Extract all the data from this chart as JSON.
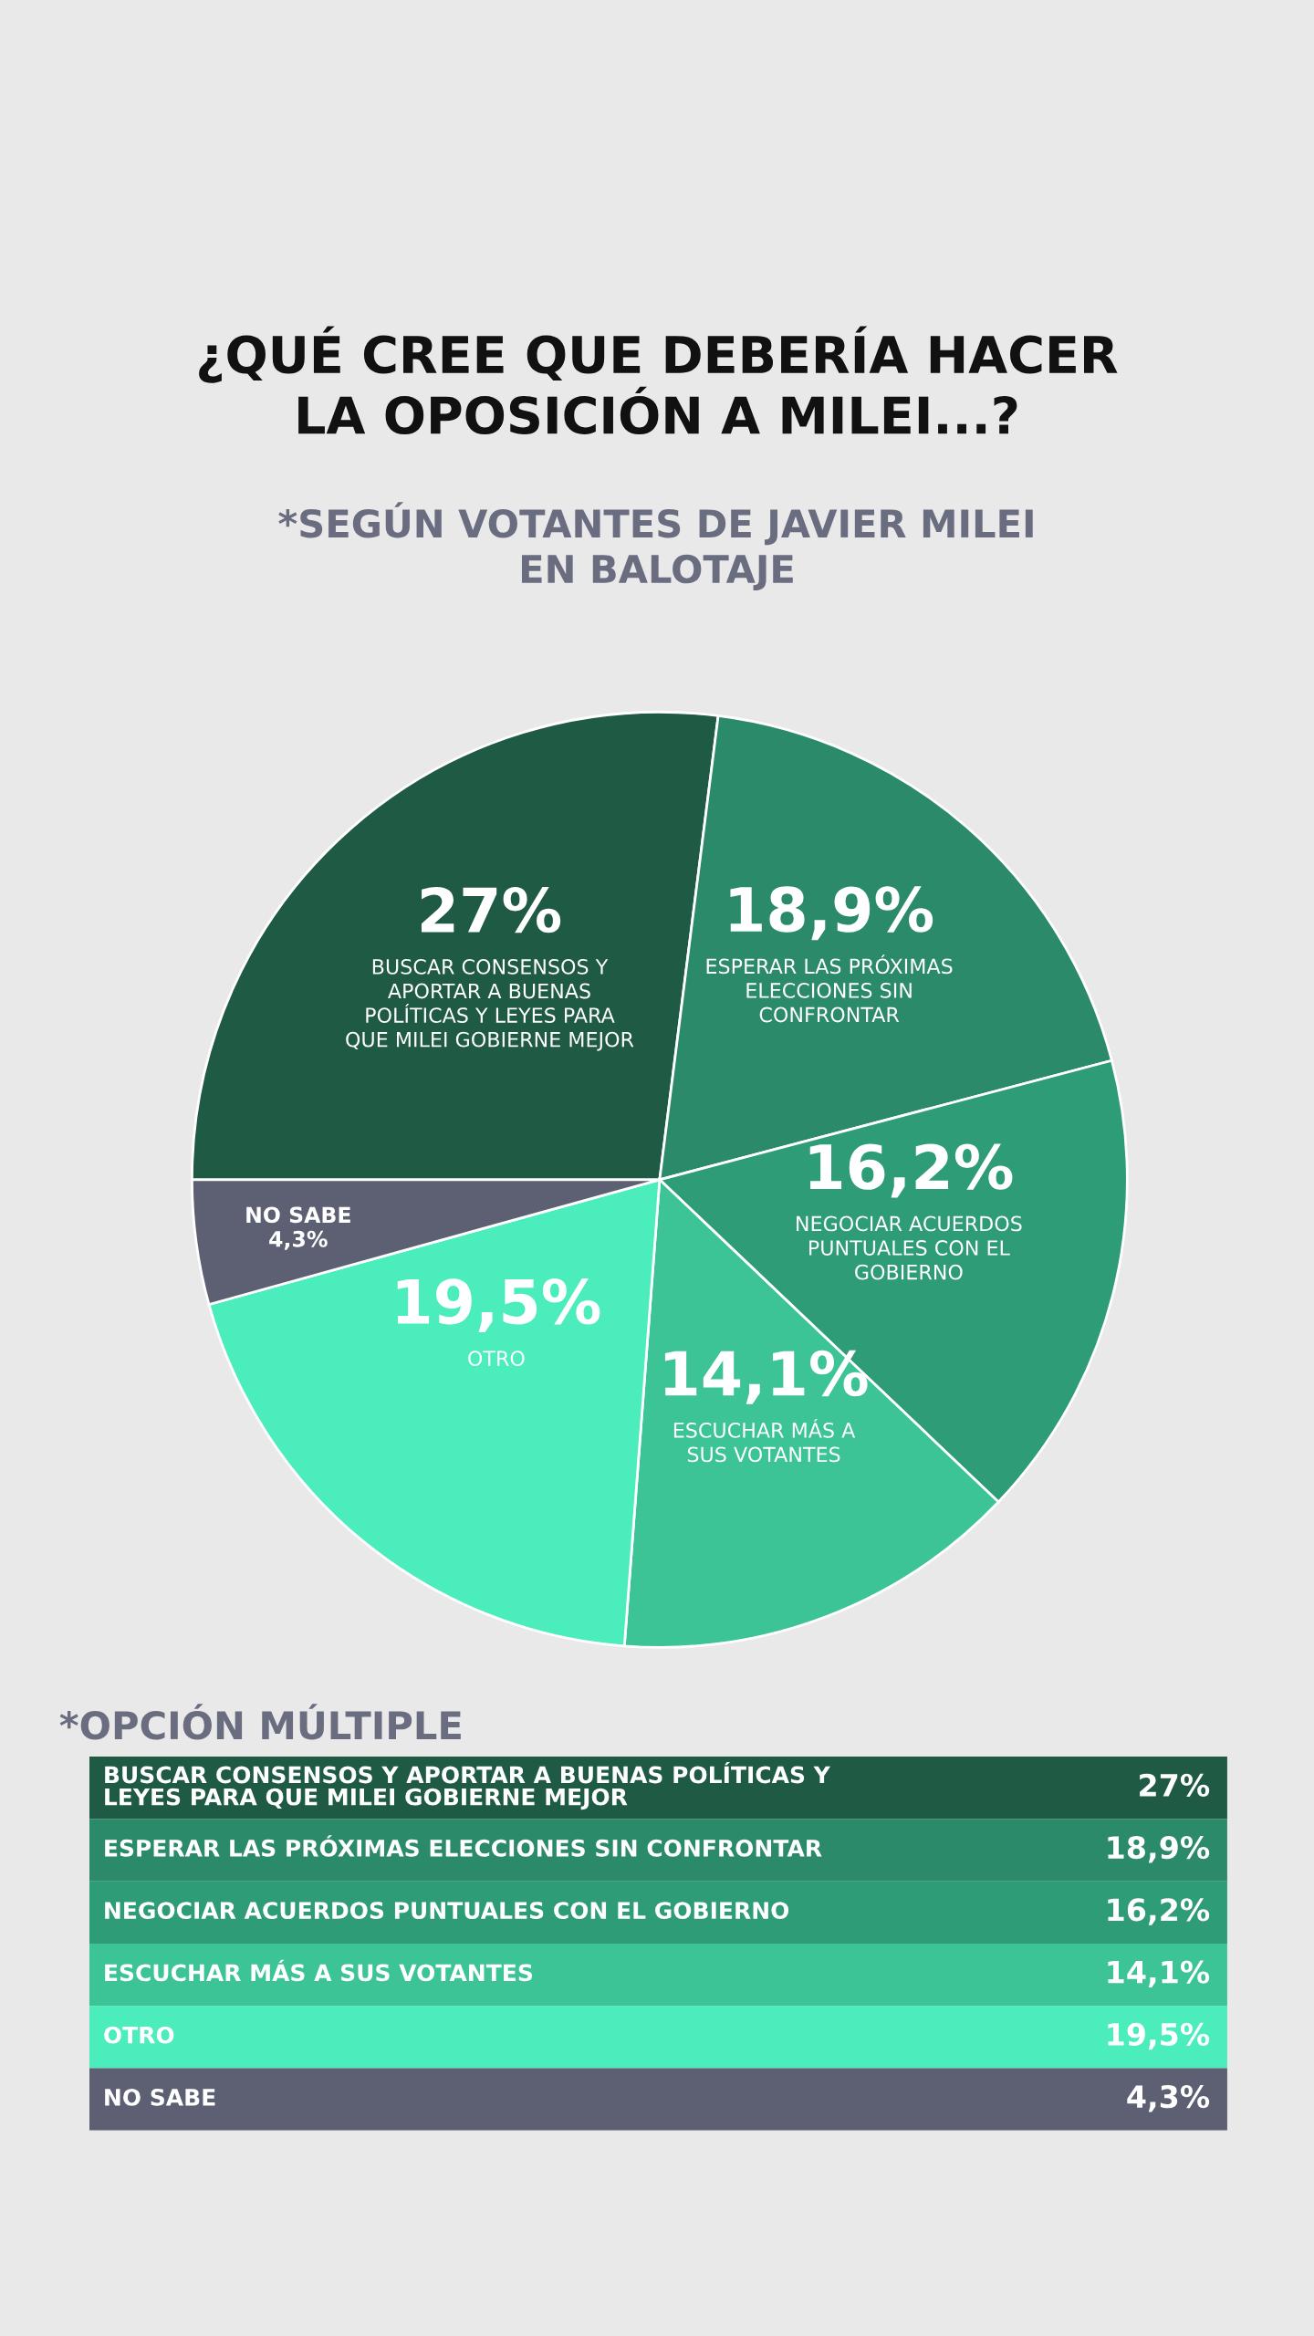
{
  "chart_data": {
    "type": "pie",
    "title": "¿QUÉ CREE QUE DEBERÍA HACER\nLA OPOSICIÓN A MILEI...?",
    "subtitle": "*SEGÚN VOTANTES DE JAVIER MILEI\nEN BALOTAJE",
    "categories": [
      "BUSCAR CONSENSOS Y APORTAR A BUENAS POLÍTICAS Y LEYES PARA QUE MILEI GOBIERNE MEJOR",
      "ESPERAR LAS PRÓXIMAS ELECCIONES SIN CONFRONTAR",
      "NEGOCIAR ACUERDOS PUNTUALES CON EL GOBIERNO",
      "ESCUCHAR MÁS A SUS VOTANTES",
      "OTRO",
      "NO SABE"
    ],
    "values": [
      27,
      18.9,
      16.2,
      14.1,
      19.5,
      4.3
    ],
    "value_labels": [
      "27%",
      "18,9%",
      "16,2%",
      "14,1%",
      "19,5%",
      "4,3%"
    ],
    "colors": [
      "#1f5a45",
      "#2b8a6a",
      "#2f9c78",
      "#3cc497",
      "#4cedbd",
      "#5d6073"
    ],
    "data_labels": true,
    "annotations": [
      "*OPCIÓN MÚLTIPLE"
    ]
  }
}
